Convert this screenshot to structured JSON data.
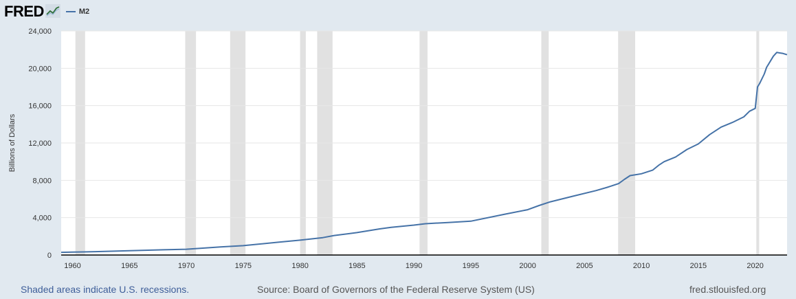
{
  "header": {
    "logo_text": "FRED",
    "logo_icon": "fred-chart-icon"
  },
  "footer": {
    "note": "Shaded areas indicate U.S. recessions.",
    "source": "Source: Board of Governors of the Federal Reserve System (US)",
    "url": "fred.stlouisfed.org"
  },
  "colors": {
    "background": "#e1e9f0",
    "plot_background": "#ffffff",
    "series_line": "#4572a7",
    "recession_band": "#e1e1e1",
    "gridline": "#e6e6e6",
    "note_text": "#3e5e99"
  },
  "chart_data": {
    "type": "line",
    "title": "",
    "xlabel": "",
    "ylabel": "Billions of Dollars",
    "xlim": [
      1959.0,
      2022.8
    ],
    "ylim": [
      0,
      24000
    ],
    "x_ticks": [
      1960,
      1965,
      1970,
      1975,
      1980,
      1985,
      1990,
      1995,
      2000,
      2005,
      2010,
      2015,
      2020
    ],
    "y_ticks": [
      0,
      4000,
      8000,
      12000,
      16000,
      20000,
      24000
    ],
    "y_tick_labels": [
      "0",
      "4,000",
      "8,000",
      "12,000",
      "16,000",
      "20,000",
      "24,000"
    ],
    "grid": true,
    "legend_position": "top-left",
    "series": [
      {
        "name": "M2",
        "x": [
          1959.0,
          1960,
          1962,
          1965,
          1968,
          1970,
          1973,
          1975,
          1978,
          1980,
          1982,
          1983,
          1985,
          1987,
          1988,
          1990,
          1991,
          1993,
          1995,
          1998,
          2000,
          2001,
          2002,
          2004,
          2006,
          2007,
          2008,
          2008.5,
          2009,
          2010,
          2011,
          2011.5,
          2012,
          2013,
          2014,
          2015,
          2016,
          2017,
          2018,
          2019,
          2019.5,
          2020.0,
          2020.2,
          2020.4,
          2020.8,
          2021.0,
          2021.3,
          2021.6,
          2021.9,
          2022.1,
          2022.4,
          2022.8
        ],
        "values": [
          290,
          310,
          360,
          460,
          560,
          620,
          860,
          1000,
          1360,
          1590,
          1860,
          2090,
          2400,
          2800,
          2970,
          3200,
          3350,
          3480,
          3620,
          4370,
          4850,
          5300,
          5700,
          6300,
          6900,
          7250,
          7650,
          8100,
          8500,
          8700,
          9100,
          9600,
          10000,
          10500,
          11300,
          11900,
          12900,
          13700,
          14200,
          14800,
          15400,
          15700,
          18000,
          18400,
          19400,
          20100,
          20700,
          21300,
          21700,
          21650,
          21600,
          21450
        ]
      }
    ],
    "recessions": [
      [
        1960.25,
        1961.1
      ],
      [
        1969.9,
        1970.85
      ],
      [
        1973.85,
        1975.2
      ],
      [
        1980.0,
        1980.5
      ],
      [
        1981.5,
        1982.85
      ],
      [
        1990.5,
        1991.2
      ],
      [
        2001.2,
        2001.85
      ],
      [
        2007.95,
        2009.45
      ],
      [
        2020.1,
        2020.35
      ]
    ]
  }
}
